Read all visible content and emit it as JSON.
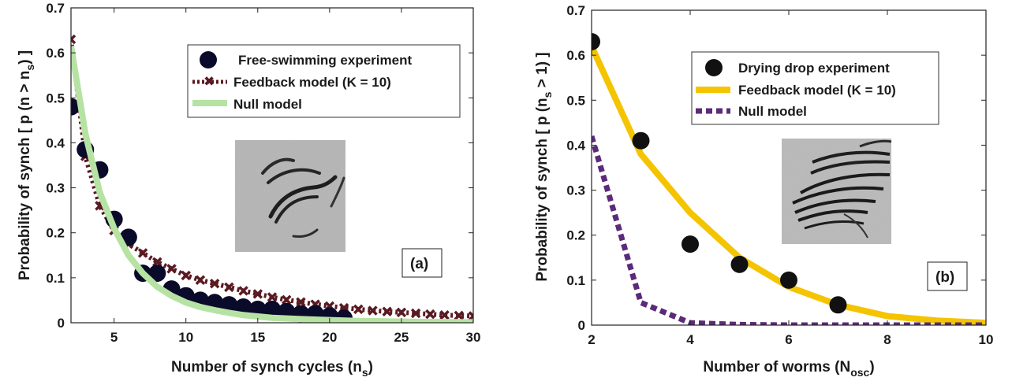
{
  "chart_data": [
    {
      "type": "scatter",
      "panel_label": "(a)",
      "xlabel": {
        "main": "Number of synch cycles (n",
        "sub": "s",
        "tail": ")"
      },
      "ylabel": {
        "main": "Probability of synch  [ p (n > n",
        "sub": "s",
        "tail": ") ]"
      },
      "xlim": [
        2,
        30
      ],
      "ylim": [
        0,
        0.7
      ],
      "xticks": [
        5,
        10,
        15,
        20,
        25,
        30
      ],
      "yticks": [
        0,
        0.1,
        0.2,
        0.3,
        0.4,
        0.5,
        0.6,
        0.7
      ],
      "grid": false,
      "legend_position": "top-right",
      "inset_image": "free-swimming worms photo",
      "series": [
        {
          "name": "Free-swimming experiment",
          "style": "markers",
          "color": "#0a0a2a",
          "x": [
            2,
            3,
            4,
            5,
            6,
            7,
            8,
            9,
            10,
            11,
            12,
            13,
            14,
            15,
            16,
            17,
            18,
            19,
            20,
            21
          ],
          "y": [
            0.48,
            0.385,
            0.34,
            0.23,
            0.19,
            0.11,
            0.11,
            0.075,
            0.06,
            0.05,
            0.045,
            0.04,
            0.035,
            0.03,
            0.03,
            0.025,
            0.02,
            0.02,
            0.015,
            0.01
          ]
        },
        {
          "name": "Feedback model (K = 10)",
          "style": "dotted-x",
          "color": "#5a1a22",
          "x": [
            2,
            3,
            4,
            5,
            6,
            7,
            8,
            9,
            10,
            11,
            12,
            13,
            14,
            15,
            16,
            17,
            18,
            19,
            20,
            21,
            22,
            23,
            24,
            25,
            26,
            27,
            28,
            29,
            30
          ],
          "y": [
            0.63,
            0.37,
            0.26,
            0.205,
            0.175,
            0.155,
            0.135,
            0.12,
            0.105,
            0.095,
            0.087,
            0.079,
            0.071,
            0.064,
            0.057,
            0.051,
            0.046,
            0.041,
            0.037,
            0.033,
            0.03,
            0.027,
            0.025,
            0.023,
            0.021,
            0.019,
            0.017,
            0.016,
            0.015
          ]
        },
        {
          "name": "Null model",
          "style": "solid",
          "color": "#b6e3a3",
          "x": [
            2,
            3,
            4,
            5,
            6,
            7,
            8,
            9,
            10,
            11,
            12,
            13,
            14,
            15,
            16,
            18,
            20,
            22,
            24,
            26,
            28,
            30
          ],
          "y": [
            0.615,
            0.42,
            0.29,
            0.21,
            0.15,
            0.11,
            0.08,
            0.06,
            0.045,
            0.035,
            0.028,
            0.022,
            0.017,
            0.014,
            0.011,
            0.008,
            0.006,
            0.004,
            0.003,
            0.002,
            0.0015,
            0.001
          ]
        }
      ]
    },
    {
      "type": "scatter",
      "panel_label": "(b)",
      "xlabel": {
        "main": "Number of worms (N",
        "sub": "osc",
        "tail": ")"
      },
      "ylabel": {
        "main": "Probability of synch [ p (n",
        "sub": "s",
        "tail": " > 1) ]"
      },
      "xlim": [
        2,
        10
      ],
      "ylim": [
        0,
        0.7
      ],
      "xticks": [
        2,
        4,
        6,
        8,
        10
      ],
      "yticks": [
        0,
        0.1,
        0.2,
        0.3,
        0.4,
        0.5,
        0.6,
        0.7
      ],
      "grid": false,
      "legend_position": "top-right",
      "inset_image": "drying drop worms photo",
      "series": [
        {
          "name": "Drying drop experiment",
          "style": "markers",
          "color": "#111111",
          "x": [
            2,
            3,
            4,
            5,
            6,
            7
          ],
          "y": [
            0.63,
            0.41,
            0.18,
            0.135,
            0.1,
            0.045
          ]
        },
        {
          "name": "Feedback model (K = 10)",
          "style": "solid",
          "color": "#f5c400",
          "x": [
            2,
            3,
            4,
            5,
            6,
            7,
            8,
            9,
            10
          ],
          "y": [
            0.62,
            0.38,
            0.25,
            0.15,
            0.085,
            0.045,
            0.02,
            0.01,
            0.005
          ]
        },
        {
          "name": "Null model",
          "style": "dashed",
          "color": "#5c2a7a",
          "x": [
            2,
            3,
            4,
            5,
            6,
            7,
            8,
            9,
            10
          ],
          "y": [
            0.42,
            0.05,
            0.005,
            0.001,
            0.0,
            0.0,
            0.0,
            0.0,
            0.0
          ]
        }
      ]
    }
  ]
}
